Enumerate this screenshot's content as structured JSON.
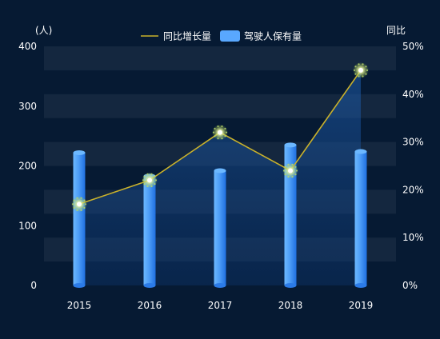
{
  "chart_data": {
    "type": "bar+line",
    "categories": [
      "2015",
      "2016",
      "2017",
      "2018",
      "2019"
    ],
    "series": [
      {
        "name": "驾驶人保有量",
        "type": "bar",
        "axis": "left",
        "values": [
          222,
          183,
          192,
          235,
          224
        ]
      },
      {
        "name": "同比增长量",
        "type": "line",
        "axis": "right",
        "values": [
          17,
          22,
          32,
          24,
          45
        ]
      }
    ],
    "left_axis": {
      "label": "(人)",
      "min": 0,
      "max": 400,
      "ticks": [
        "0",
        "100",
        "200",
        "300",
        "400"
      ]
    },
    "right_axis": {
      "label": "同比",
      "min": 0,
      "max": 50,
      "ticks": [
        "0%",
        "10%",
        "20%",
        "30%",
        "40%",
        "50%"
      ]
    },
    "legend_position": "top-center",
    "grid": "alternating horizontal bands",
    "colors": {
      "background": "#061a33",
      "bar": "#3f8fef",
      "bar_light": "#6cb8ff",
      "line": "#c9b12b",
      "marker": "#b9d86a",
      "text": "#ffffff"
    }
  }
}
